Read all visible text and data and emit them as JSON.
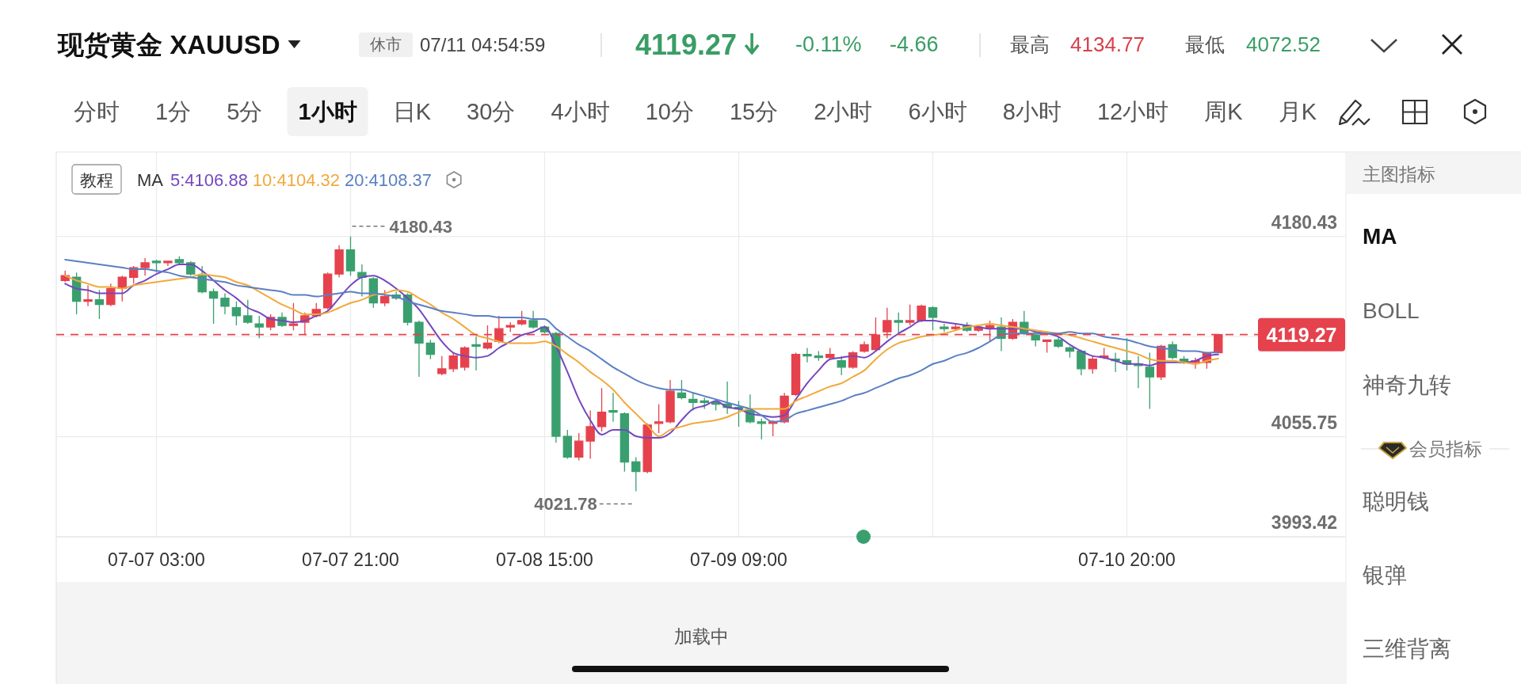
{
  "chart_data": {
    "type": "candlestick",
    "title": "现货黄金 XAUUSD",
    "categories": [
      null,
      null,
      null,
      null,
      null,
      null,
      null,
      null,
      "07-07 03:00",
      null,
      null,
      null,
      null,
      null,
      null,
      null,
      null,
      null,
      null,
      null,
      null,
      null,
      null,
      null,
      null,
      "07-07 21:00",
      null,
      null,
      null,
      null,
      null,
      null,
      null,
      null,
      null,
      null,
      null,
      null,
      null,
      null,
      null,
      null,
      "07-08 15:00",
      null,
      null,
      null,
      null,
      null,
      null,
      null,
      null,
      null,
      null,
      null,
      null,
      null,
      null,
      null,
      null,
      "07-09 09:00",
      null,
      null,
      null,
      null,
      null,
      null,
      null,
      null,
      null,
      null,
      null,
      null,
      null,
      null,
      null,
      null,
      null,
      null,
      null,
      null,
      null,
      null,
      null,
      null,
      null,
      null,
      null,
      null,
      null,
      null,
      null,
      null,
      null,
      "07-10 20:00",
      null,
      null,
      null,
      null,
      null,
      null,
      null,
      null
    ],
    "ohlc": [
      [
        4153,
        4159,
        4152,
        4156
      ],
      [
        4155,
        4158,
        4132,
        4140
      ],
      [
        4140,
        4150,
        4137,
        4141
      ],
      [
        4141,
        4147,
        4129,
        4138
      ],
      [
        4138,
        4151,
        4137,
        4148
      ],
      [
        4148,
        4156,
        4140,
        4155
      ],
      [
        4155,
        4162,
        4151,
        4161
      ],
      [
        4161,
        4167,
        4156,
        4164
      ],
      [
        4165,
        4166,
        4158,
        4164
      ],
      [
        4164,
        4165,
        4162,
        4165
      ],
      [
        4166,
        4168,
        4163,
        4164
      ],
      [
        4164,
        4165,
        4156,
        4157
      ],
      [
        4156,
        4162,
        4145,
        4146
      ],
      [
        4146,
        4148,
        4126,
        4142
      ],
      [
        4142,
        4145,
        4132,
        4137
      ],
      [
        4136,
        4140,
        4125,
        4131
      ],
      [
        4131,
        4141,
        4126,
        4127
      ],
      [
        4126,
        4131,
        4117,
        4124
      ],
      [
        4124,
        4132,
        4122,
        4130
      ],
      [
        4130,
        4133,
        4124,
        4125
      ],
      [
        4125,
        4139,
        4122,
        4126
      ],
      [
        4127,
        4133,
        4119,
        4131
      ],
      [
        4131,
        4139,
        4130,
        4135
      ],
      [
        4136,
        4158,
        4135,
        4157
      ],
      [
        4157,
        4175,
        4155,
        4172
      ],
      [
        4172,
        4180.43,
        4156,
        4159
      ],
      [
        4158,
        4163,
        4143,
        4155
      ],
      [
        4154,
        4155,
        4136,
        4139
      ],
      [
        4139,
        4147,
        4137,
        4143
      ],
      [
        4144,
        4146,
        4141,
        4142
      ],
      [
        4144,
        4145,
        4125,
        4127
      ],
      [
        4127,
        4128,
        4093,
        4114
      ],
      [
        4114,
        4116,
        4104,
        4107
      ],
      [
        4095,
        4106,
        4094,
        4098
      ],
      [
        4098,
        4108,
        4096,
        4106
      ],
      [
        4099,
        4112,
        4097,
        4111
      ],
      [
        4113,
        4118,
        4097,
        4112
      ],
      [
        4111,
        4125,
        4110,
        4114
      ],
      [
        4115,
        4131,
        4114,
        4123
      ],
      [
        4124,
        4127,
        4121,
        4125
      ],
      [
        4126,
        4134,
        4125,
        4128
      ],
      [
        4128,
        4134,
        4123,
        4124
      ],
      [
        4124,
        4125,
        4120,
        4121
      ],
      [
        4120,
        4121,
        4052,
        4056
      ],
      [
        4056,
        4060,
        4042,
        4043
      ],
      [
        4043,
        4058,
        4041,
        4053
      ],
      [
        4053,
        4072,
        4042,
        4062
      ],
      [
        4062,
        4086,
        4059,
        4071
      ],
      [
        4072,
        4083,
        4065,
        4071
      ],
      [
        4070,
        4071,
        4034,
        4040
      ],
      [
        4040,
        4043,
        4021.78,
        4034
      ],
      [
        4034,
        4064,
        4033,
        4063
      ],
      [
        4064,
        4076,
        4058,
        4065
      ],
      [
        4065,
        4091,
        4064,
        4084
      ],
      [
        4083,
        4091,
        4079,
        4080
      ],
      [
        4079,
        4083,
        4072,
        4077
      ],
      [
        4078,
        4080,
        4073,
        4077
      ],
      [
        4077,
        4079,
        4072,
        4076
      ],
      [
        4076,
        4090,
        4070,
        4074
      ],
      [
        4074,
        4078,
        4062,
        4073
      ],
      [
        4072,
        4082,
        4064,
        4065
      ],
      [
        4065,
        4067,
        4054,
        4064
      ],
      [
        4064,
        4066,
        4056,
        4065
      ],
      [
        4065,
        4083,
        4064,
        4081
      ],
      [
        4082,
        4108,
        4081,
        4107
      ],
      [
        4107,
        4111,
        4102,
        4106
      ],
      [
        4106,
        4109,
        4103,
        4105
      ],
      [
        4105,
        4111,
        4104,
        4107
      ],
      [
        4103,
        4106,
        4094,
        4099
      ],
      [
        4099,
        4109,
        4098,
        4108
      ],
      [
        4109,
        4115,
        4108,
        4113
      ],
      [
        4110,
        4130,
        4109,
        4119
      ],
      [
        4121,
        4136,
        4117,
        4128
      ],
      [
        4128,
        4133,
        4120,
        4127
      ],
      [
        4127,
        4138,
        4125,
        4128
      ],
      [
        4128,
        4138,
        4127,
        4137
      ],
      [
        4136,
        4137,
        4122,
        4130
      ],
      [
        4124,
        4126,
        4121,
        4123
      ],
      [
        4123,
        4126,
        4122,
        4124
      ],
      [
        4125,
        4127,
        4121,
        4122
      ],
      [
        4122,
        4125,
        4121,
        4124
      ],
      [
        4123,
        4128,
        4115,
        4125
      ],
      [
        4124,
        4130,
        4109,
        4117
      ],
      [
        4117,
        4129,
        4116,
        4127
      ],
      [
        4127,
        4134,
        4119,
        4120
      ],
      [
        4119,
        4120,
        4112,
        4116
      ],
      [
        4115,
        4116,
        4108,
        4116
      ],
      [
        4116,
        4118,
        4111,
        4112
      ],
      [
        4111,
        4112,
        4105,
        4109
      ],
      [
        4109,
        4110,
        4094,
        4098
      ],
      [
        4098,
        4106,
        4095,
        4104
      ],
      [
        4105,
        4111,
        4104,
        4106
      ],
      [
        4104,
        4108,
        4096,
        4103
      ],
      [
        4103,
        4117,
        4097,
        4101
      ],
      [
        4101,
        4106,
        4086,
        4100
      ],
      [
        4099,
        4108,
        4073,
        4093
      ],
      [
        4093,
        4113,
        4091,
        4112
      ],
      [
        4113,
        4115,
        4104,
        4105
      ],
      [
        4104,
        4106,
        4101,
        4102
      ],
      [
        4102,
        4105,
        4098,
        4103
      ],
      [
        4102,
        4108,
        4098,
        4108
      ],
      [
        4108,
        4119.27,
        4108,
        4119.27
      ]
    ],
    "colors": [
      "#e5424d",
      "#3a9f6e",
      "#e5424d",
      "#3a9f6e",
      "#e5424d",
      "#e5424d",
      "#e5424d",
      "#e5424d",
      "#3a9f6e",
      "#e5424d",
      "#3a9f6e",
      "#3a9f6e",
      "#3a9f6e",
      "#3a9f6e",
      "#3a9f6e",
      "#3a9f6e",
      "#3a9f6e",
      "#3a9f6e",
      "#e5424d",
      "#3a9f6e",
      "#e5424d",
      "#e5424d",
      "#e5424d",
      "#e5424d",
      "#e5424d",
      "#3a9f6e",
      "#3a9f6e",
      "#3a9f6e",
      "#e5424d",
      "#3a9f6e",
      "#3a9f6e",
      "#3a9f6e",
      "#3a9f6e",
      "#e5424d",
      "#e5424d",
      "#e5424d",
      "#3a9f6e",
      "#e5424d",
      "#e5424d",
      "#e5424d",
      "#e5424d",
      "#3a9f6e",
      "#3a9f6e",
      "#3a9f6e",
      "#3a9f6e",
      "#e5424d",
      "#e5424d",
      "#e5424d",
      "#3a9f6e",
      "#3a9f6e",
      "#3a9f6e",
      "#e5424d",
      "#e5424d",
      "#e5424d",
      "#3a9f6e",
      "#3a9f6e",
      "#3a9f6e",
      "#3a9f6e",
      "#3a9f6e",
      "#3a9f6e",
      "#3a9f6e",
      "#3a9f6e",
      "#e5424d",
      "#e5424d",
      "#e5424d",
      "#3a9f6e",
      "#3a9f6e",
      "#e5424d",
      "#3a9f6e",
      "#e5424d",
      "#e5424d",
      "#e5424d",
      "#e5424d",
      "#3a9f6e",
      "#e5424d",
      "#e5424d",
      "#3a9f6e",
      "#3a9f6e",
      "#e5424d",
      "#3a9f6e",
      "#e5424d",
      "#e5424d",
      "#3a9f6e",
      "#e5424d",
      "#3a9f6e",
      "#3a9f6e",
      "#e5424d",
      "#3a9f6e",
      "#3a9f6e",
      "#3a9f6e",
      "#e5424d",
      "#e5424d",
      "#3a9f6e",
      "#3a9f6e",
      "#3a9f6e",
      "#3a9f6e",
      "#e5424d",
      "#3a9f6e",
      "#3a9f6e",
      "#e5424d",
      "#e5424d",
      "#e5424d"
    ],
    "series": [
      {
        "type": "line",
        "name": "5:4106.88",
        "color": "#7448c0",
        "values": [
          4151,
          4148,
          4147,
          4145,
          4145,
          4145,
          4150,
          4153,
          4157,
          4160,
          4163,
          4163,
          4159,
          4153,
          4147,
          4142,
          4136,
          4133,
          4129,
          4128,
          4127,
          4128,
          4131,
          4134,
          4142,
          4150,
          4155,
          4156,
          4153,
          4148,
          4142,
          4135,
          4125,
          4115,
          4108,
          4106,
          4105,
          4106,
          4111,
          4115,
          4119,
          4121,
          4124,
          4112,
          4096,
          4079,
          4066,
          4057,
          4060,
          4060,
          4056,
          4055,
          4055,
          4058,
          4066,
          4073,
          4075,
          4078,
          4074,
          4073,
          4070,
          4069,
          4068,
          4069,
          4079,
          4089,
          4097,
          4104,
          4105,
          4106,
          4105,
          4109,
          4115,
          4120,
          4124,
          4128,
          4128,
          4127,
          4126,
          4125,
          4124,
          4123,
          4123,
          4123,
          4123,
          4121,
          4120,
          4118,
          4113,
          4109,
          4106,
          4105,
          4103,
          4101,
          4101,
          4100,
          4102,
          4102,
          4102,
          4103,
          4106,
          4106.88
        ]
      },
      {
        "type": "line",
        "name": "10:4104.32",
        "color": "#f2a93b",
        "values": [
          4156,
          4153,
          4151,
          4149,
          4149,
          4148,
          4150,
          4151,
          4152,
          4153,
          4154,
          4155,
          4157,
          4156,
          4155,
          4152,
          4150,
          4146,
          4142,
          4138,
          4135,
          4132,
          4132,
          4133,
          4136,
          4139,
          4141,
          4144,
          4145,
          4147,
          4146,
          4142,
          4138,
          4133,
          4129,
          4124,
          4119,
          4117,
          4115,
          4114,
          4114,
          4114,
          4115,
          4112,
          4107,
          4102,
          4096,
          4091,
          4085,
          4077,
          4070,
          4063,
          4056,
          4060,
          4062,
          4064,
          4065,
          4066,
          4068,
          4071,
          4073,
          4073,
          4073,
          4073,
          4078,
          4081,
          4084,
          4087,
          4089,
          4093,
          4097,
          4104,
          4110,
          4114,
          4116,
          4118,
          4119,
          4120,
          4122,
          4124,
          4125,
          4126,
          4125,
          4124,
          4123,
          4122,
          4121,
          4120,
          4119,
          4117,
          4115,
          4113,
          4111,
          4109,
          4107,
          4104,
          4103,
          4103,
          4102,
          4101,
          4103,
          4104.32
        ]
      },
      {
        "type": "line",
        "name": "20:4108.37",
        "color": "#5b80c4",
        "values": [
          4166,
          4165,
          4164,
          4163,
          4162,
          4161,
          4160,
          4160,
          4159,
          4158,
          4156,
          4155,
          4154,
          4153,
          4152,
          4150,
          4149,
          4148,
          4147,
          4146,
          4144,
          4144,
          4143,
          4144,
          4145,
          4146,
          4145,
          4145,
          4144,
          4143,
          4140,
          4138,
          4136,
          4134,
          4133,
          4132,
          4131,
          4131,
          4130,
          4130,
          4130,
          4129,
          4129,
          4123,
          4118,
          4113,
          4109,
          4104,
          4099,
          4095,
          4091,
          4088,
          4086,
          4085,
          4085,
          4083,
          4081,
          4079,
          4077,
          4075,
          4073,
          4069,
          4065,
          4066,
          4070,
          4072,
          4074,
          4076,
          4078,
          4081,
          4083,
          4086,
          4089,
          4092,
          4094,
          4097,
          4101,
          4103,
          4106,
          4108,
          4111,
          4115,
          4119,
          4120,
          4120,
          4120,
          4120,
          4120,
          4121,
          4120,
          4120,
          4118,
          4117,
          4116,
          4114,
          4112,
          4111,
          4110,
          4109,
          4109,
          4108,
          4108.37
        ]
      }
    ],
    "legend": "top left",
    "legend_title": "MA",
    "ylim": [
      3993.42,
      4233
    ],
    "yticks": [
      3993.42,
      4055.75,
      {
        "value": 4118.09,
        "label": null
      },
      4180.43
    ],
    "grid": true,
    "ref_lines": [
      {
        "axis": "y",
        "value": 4119.27,
        "color": "#e5424d",
        "line_style": "dashed"
      }
    ],
    "annotations": [
      {
        "text": "4180.43",
        "x": "07-07 21:00",
        "y": 4180.43
      },
      "4021.78",
      "4119.27",
      "休市",
      "07/11 04:54:59",
      "4119.27",
      "-0.11%",
      "-4.66",
      "最高",
      "4134.77",
      "最低",
      "4072.52",
      "分时",
      "1分",
      "5分",
      "1小时",
      "日K",
      "30分",
      "4小时",
      "10分",
      "15分",
      "2小时",
      "6小时",
      "8小时",
      "12小时",
      "周K",
      "月K",
      "教程",
      "主图指标",
      "MA",
      "BOLL",
      "神奇九转",
      "会员指标",
      "聪明钱",
      "银弹",
      "三维背离",
      "加载中"
    ]
  }
}
